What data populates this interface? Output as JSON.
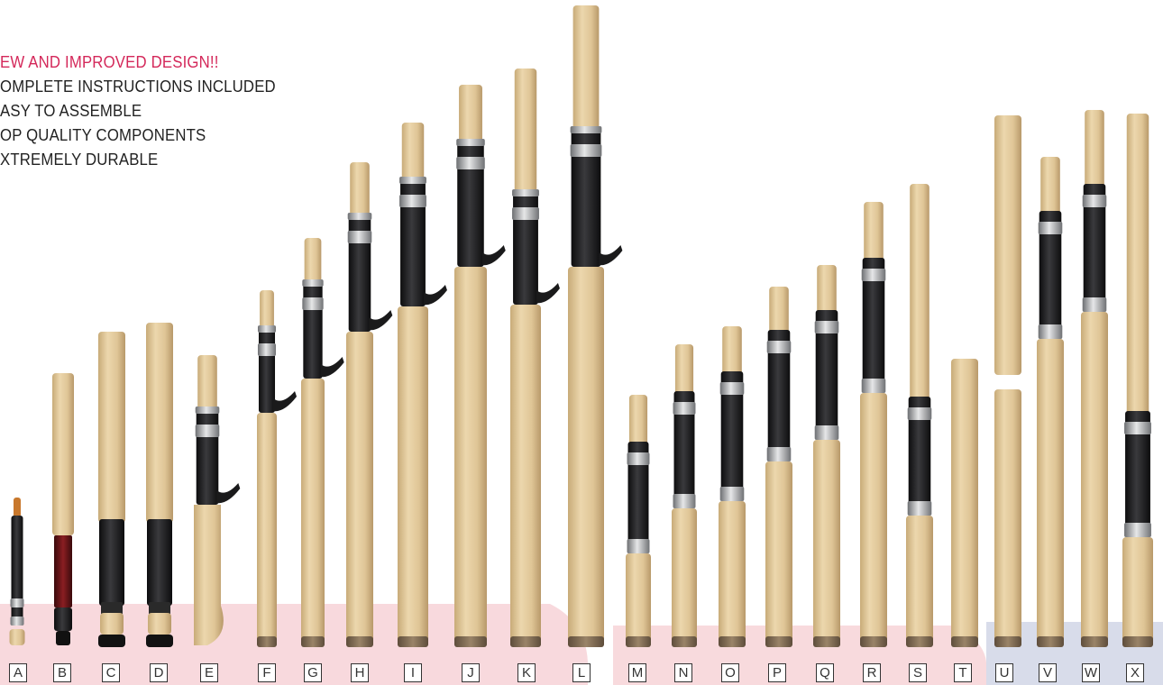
{
  "headline": "EW AND IMPROVED DESIGN!!",
  "features": [
    "OMPLETE INSTRUCTIONS INCLUDED",
    "ASY TO ASSEMBLE",
    "OP QUALITY COMPONENTS",
    "XTREMELY DURABLE"
  ],
  "letters": [
    "A",
    "B",
    "C",
    "D",
    "E",
    "F",
    "G",
    "H",
    "I",
    "J",
    "K",
    "L",
    "M",
    "N",
    "O",
    "P",
    "Q",
    "R",
    "S",
    "T",
    "U",
    "V",
    "W",
    "X"
  ],
  "colors": {
    "headline": "#d4285a",
    "cork": "#dcc394",
    "grip": "#1c1c1e",
    "reel_seat_band": "#a8aaab",
    "butt_cap": "#7d6a55",
    "band_pink": "#f8d9dd",
    "band_blue": "#d8dcea"
  }
}
